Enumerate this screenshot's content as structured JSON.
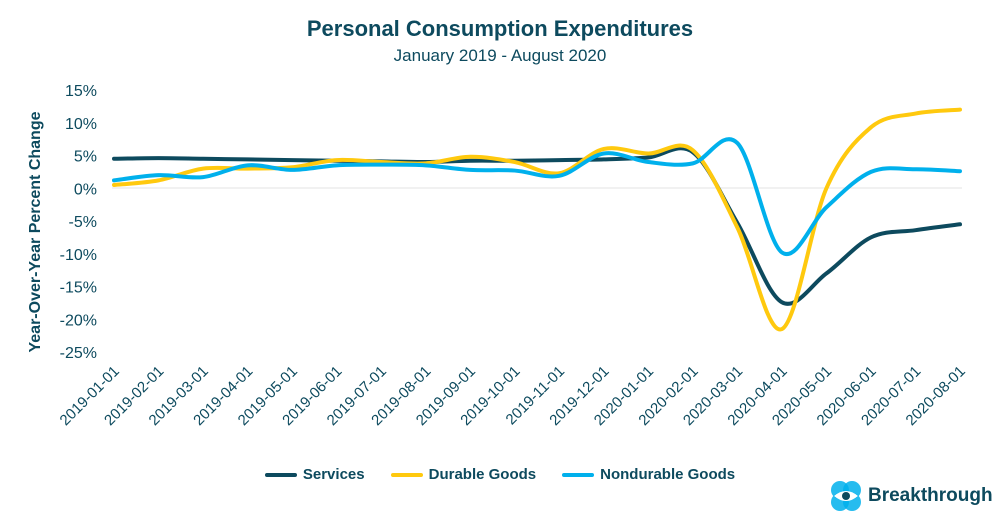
{
  "chart_data": {
    "type": "line",
    "title": "Personal Consumption Expenditures",
    "subtitle": "January 2019 - August 2020",
    "xlabel": "",
    "ylabel": "Year-Over-Year Percent Change",
    "ylim": [
      -25,
      15
    ],
    "yticks": [
      "15%",
      "10%",
      "5%",
      "0%",
      "-5%",
      "-10%",
      "-15%",
      "-20%",
      "-25%"
    ],
    "ytick_values": [
      15,
      10,
      5,
      0,
      -5,
      -10,
      -15,
      -20,
      -25
    ],
    "grid": "zero line only",
    "legend": "bottom",
    "categories": [
      "2019-01-01",
      "2019-02-01",
      "2019-03-01",
      "2019-04-01",
      "2019-05-01",
      "2019-06-01",
      "2019-07-01",
      "2019-08-01",
      "2019-09-01",
      "2019-10-01",
      "2019-11-01",
      "2019-12-01",
      "2020-01-01",
      "2020-02-01",
      "2020-03-01",
      "2020-04-01",
      "2020-05-01",
      "2020-06-01",
      "2020-07-01",
      "2020-08-01"
    ],
    "series": [
      {
        "name": "Services",
        "color": "#0d4a5e",
        "values": [
          4.5,
          4.6,
          4.5,
          4.4,
          4.3,
          4.2,
          4.1,
          4.0,
          4.2,
          4.2,
          4.3,
          4.4,
          4.7,
          5.5,
          -5.3,
          -17.4,
          -13.0,
          -7.5,
          -6.4,
          -5.5
        ]
      },
      {
        "name": "Durable Goods",
        "color": "#ffc90e",
        "values": [
          0.5,
          1.2,
          3.0,
          3.0,
          3.2,
          4.3,
          4.0,
          3.8,
          4.8,
          4.0,
          2.3,
          6.0,
          5.3,
          5.8,
          -6.0,
          -21.5,
          0.0,
          9.3,
          11.4,
          12.0
        ]
      },
      {
        "name": "Nondurable Goods",
        "color": "#00b0ec",
        "values": [
          1.2,
          2.0,
          1.7,
          3.5,
          2.8,
          3.5,
          3.6,
          3.5,
          2.8,
          2.7,
          1.9,
          5.3,
          4.0,
          3.8,
          6.9,
          -9.8,
          -2.9,
          2.5,
          2.9,
          2.6
        ]
      }
    ]
  },
  "logo": {
    "text": "Breakthrough",
    "color": "#0d4a5e",
    "accent": "#00b0ec"
  }
}
